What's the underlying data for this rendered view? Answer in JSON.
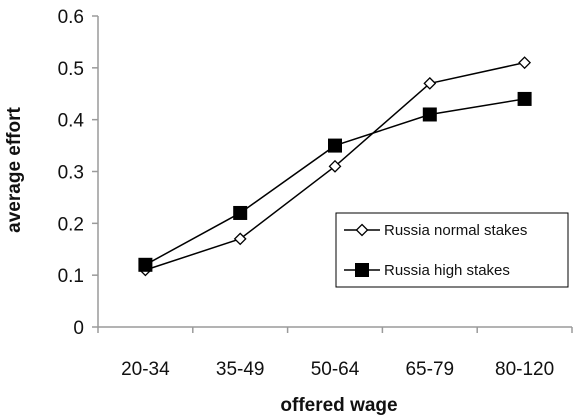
{
  "chart_data": {
    "type": "line",
    "xlabel": "offered wage",
    "ylabel": "average effort",
    "categories": [
      "20-34",
      "35-49",
      "50-64",
      "65-79",
      "80-120"
    ],
    "ylim": [
      0,
      0.6
    ],
    "yticks": [
      0,
      0.1,
      0.2,
      0.3,
      0.4,
      0.5,
      0.6
    ],
    "ytick_labels": [
      "0",
      "0.1",
      "0.2",
      "0.3",
      "0.4",
      "0.5",
      "0.6"
    ],
    "grid": false,
    "legend_position": "center-right",
    "series": [
      {
        "name": "Russia normal stakes",
        "marker": "diamond-open",
        "values": [
          0.11,
          0.17,
          0.31,
          0.47,
          0.51
        ]
      },
      {
        "name": "Russia high stakes",
        "marker": "square-filled",
        "values": [
          0.12,
          0.22,
          0.35,
          0.41,
          0.44
        ]
      }
    ],
    "colors": {
      "line": "#000000",
      "axis": "#9a9a9a",
      "background": "#ffffff"
    }
  }
}
